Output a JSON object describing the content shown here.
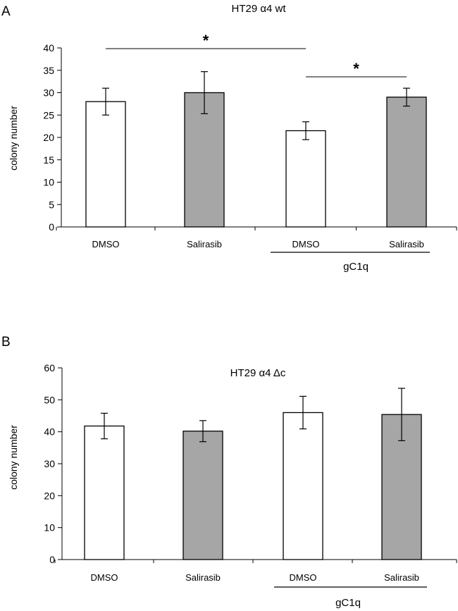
{
  "chart_data": [
    {
      "panel": "A",
      "type": "bar",
      "title": "HT29 α4 wt",
      "ylabel": "colony number",
      "xlabel": "",
      "categories": [
        "DMSO",
        "Salirasib",
        "DMSO",
        "Salirasib"
      ],
      "group_label": "gC1q",
      "values": [
        28,
        30,
        21.5,
        29
      ],
      "errors": [
        3,
        4.7,
        2,
        2
      ],
      "bar_colors": [
        "#ffffff",
        "#a6a6a6",
        "#ffffff",
        "#a6a6a6"
      ],
      "ylim": [
        0,
        40
      ],
      "yticks": [
        0,
        5,
        10,
        15,
        20,
        25,
        30,
        35,
        40
      ],
      "significance": [
        {
          "from": 0,
          "to": 2,
          "label": "*"
        },
        {
          "from": 2,
          "to": 3,
          "label": "*"
        }
      ]
    },
    {
      "panel": "B",
      "type": "bar",
      "title": "HT29 α4 Δc",
      "ylabel": "colony number",
      "xlabel": "",
      "categories": [
        "DMSO",
        "Salirasib",
        "DMSO",
        "Salirasib"
      ],
      "group_label": "gC1q",
      "values": [
        41.8,
        40.2,
        46,
        45.4
      ],
      "errors": [
        4,
        3.3,
        5.1,
        8.2
      ],
      "bar_colors": [
        "#ffffff",
        "#a6a6a6",
        "#ffffff",
        "#a6a6a6"
      ],
      "ylim": [
        0,
        60
      ],
      "yticks": [
        0,
        10,
        20,
        30,
        40,
        50,
        60
      ],
      "significance": []
    }
  ]
}
